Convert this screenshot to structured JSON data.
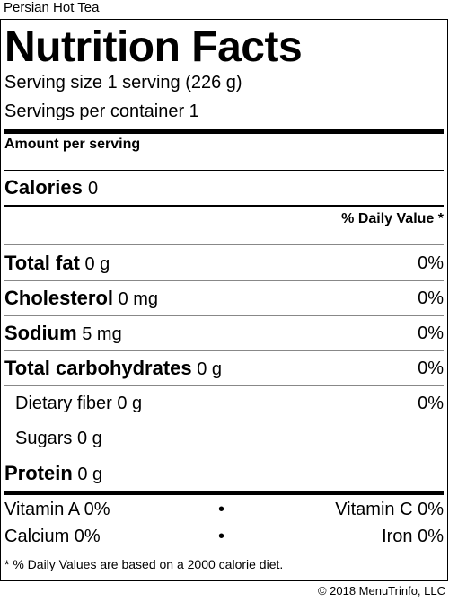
{
  "product_name": "Persian Hot Tea",
  "title": "Nutrition Facts",
  "serving_size": "Serving size 1 serving (226 g)",
  "servings_per_container": "Servings per container 1",
  "amount_per_serving": "Amount per serving",
  "calories": {
    "label": "Calories",
    "value": "0"
  },
  "daily_value_header": "% Daily Value *",
  "nutrients": [
    {
      "label": "Total fat",
      "amount": "0 g",
      "dv": "0%"
    },
    {
      "label": "Cholesterol",
      "amount": "0 mg",
      "dv": "0%"
    },
    {
      "label": "Sodium",
      "amount": "5 mg",
      "dv": "0%"
    },
    {
      "label": "Total carbohydrates",
      "amount": "0 g",
      "dv": "0%"
    },
    {
      "label": "Dietary fiber",
      "amount": "0 g",
      "dv": "0%"
    },
    {
      "label": "Sugars",
      "amount": "0 g",
      "dv": ""
    },
    {
      "label": "Protein",
      "amount": "0 g",
      "dv": ""
    }
  ],
  "vitamins": {
    "vitamin_a": "Vitamin A 0%",
    "vitamin_c": "Vitamin C 0%",
    "calcium": "Calcium 0%",
    "iron": "Iron 0%",
    "bullet": "•"
  },
  "footnote": "* % Daily Values are based on a 2000 calorie diet.",
  "copyright": "© 2018 MenuTrinfo, LLC"
}
